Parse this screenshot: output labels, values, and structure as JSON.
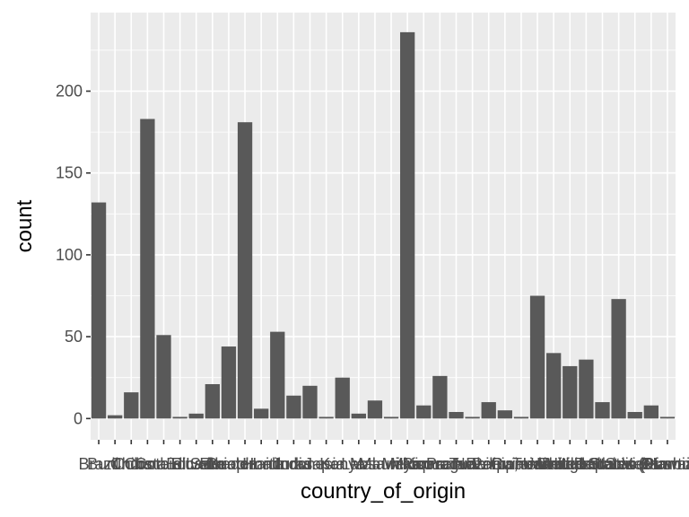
{
  "chart_data": {
    "type": "bar",
    "xlabel": "country_of_origin",
    "ylabel": "count",
    "ylim": [
      -13,
      248
    ],
    "yticks": [
      0,
      50,
      100,
      150,
      200
    ],
    "grid": true,
    "legend": "none",
    "categories": [
      "Brazil",
      "Burundi",
      "China",
      "Colombia",
      "Costa Rica",
      "Cote d'Ivoire",
      "Ecuador",
      "El Salvador",
      "Ethiopia",
      "Guatemala",
      "Haiti",
      "Honduras",
      "India",
      "Indonesia",
      "Japan",
      "Kenya",
      "Laos",
      "Malawi",
      "Mauritius",
      "Mexico",
      "Myanmar",
      "Nicaragua",
      "Panama",
      "Papua New Guinea",
      "Peru",
      "Philippines",
      "Rwanda",
      "Taiwan",
      "Tanzania, United Republic Of",
      "Thailand",
      "Uganda",
      "United States",
      "United States (Hawaii)",
      "United States (Puerto Rico)",
      "Vietnam",
      "Zambia"
    ],
    "values": [
      132,
      2,
      16,
      183,
      51,
      1,
      3,
      21,
      44,
      181,
      6,
      53,
      14,
      20,
      1,
      25,
      3,
      11,
      1,
      236,
      8,
      26,
      4,
      1,
      10,
      5,
      1,
      75,
      40,
      32,
      36,
      10,
      73,
      4,
      8,
      1
    ]
  },
  "colors": {
    "panel_background": "#ebebeb",
    "grid_major": "#ffffff",
    "bar_fill": "#595959",
    "tick_text": "#4d4d4d",
    "tick_mark": "#333333",
    "title_text": "#000000"
  }
}
